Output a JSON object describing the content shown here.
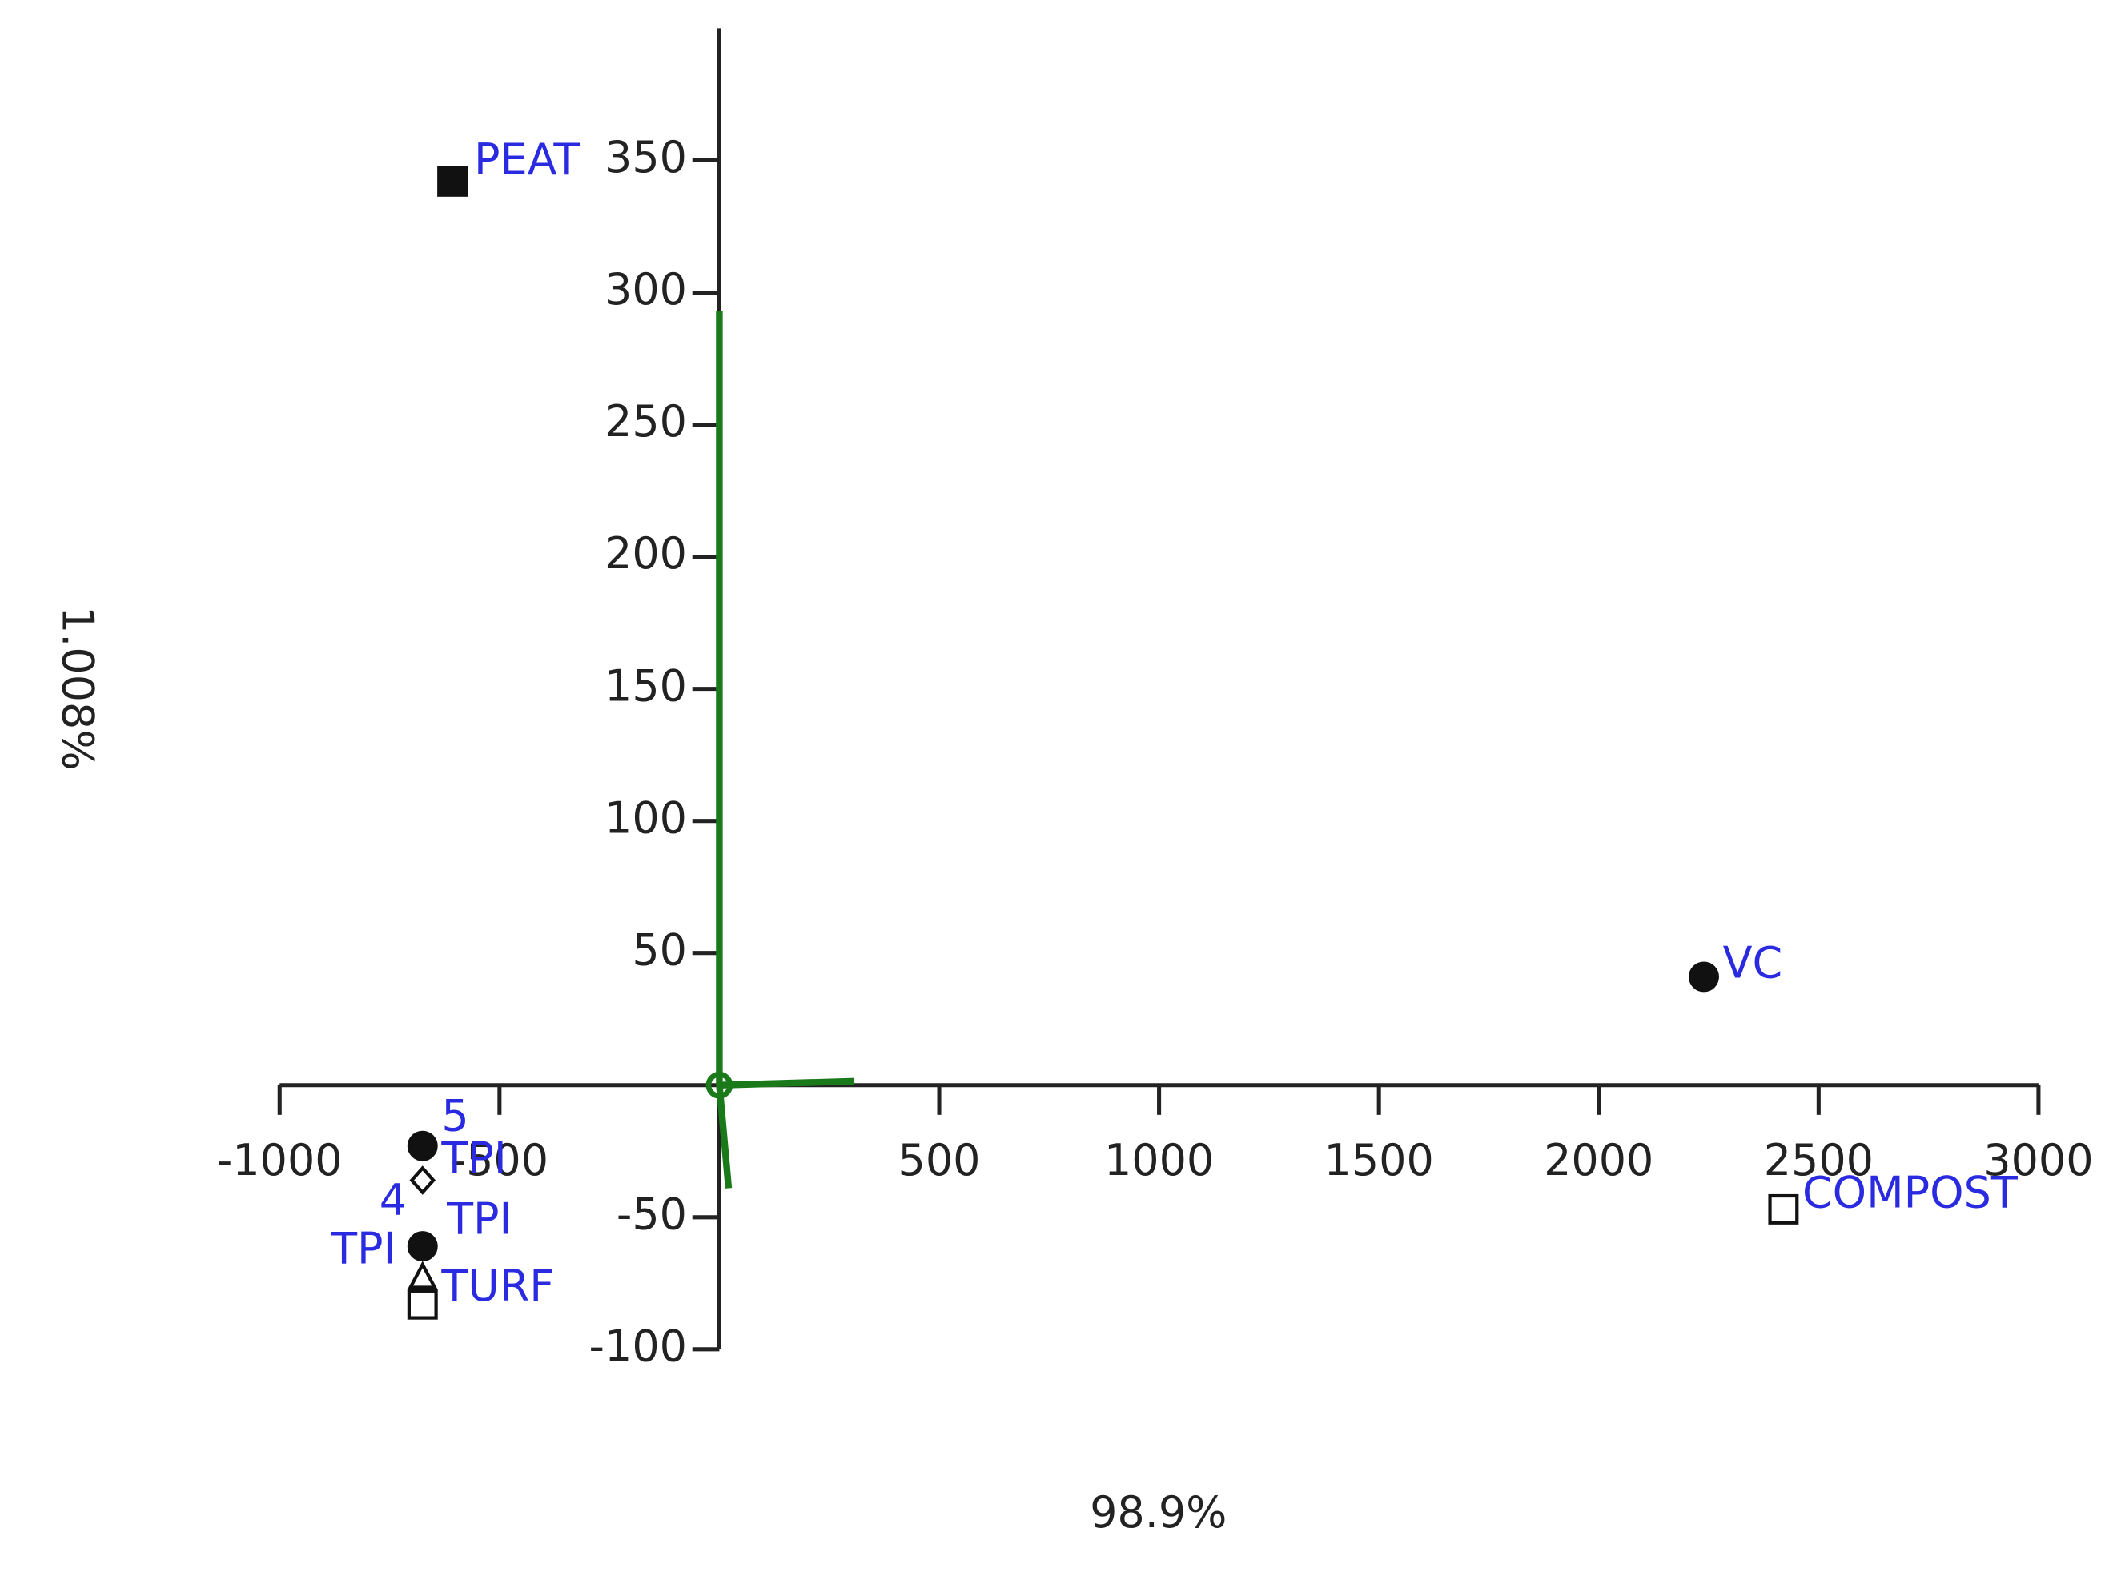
{
  "chart_data": {
    "type": "scatter",
    "x_label": "98.9%",
    "y_label": "1.008%",
    "xlim": [
      -1000,
      3000
    ],
    "ylim": [
      -100,
      400
    ],
    "xticks": [
      -1000,
      -500,
      500,
      1000,
      1500,
      2000,
      2500,
      3000
    ],
    "yticks": [
      -100,
      -50,
      50,
      100,
      150,
      200,
      250,
      300,
      350
    ],
    "points": [
      {
        "labels": [
          "PEAT"
        ],
        "marker": "square-filled",
        "x": -607,
        "y": 342
      },
      {
        "labels": [
          "VC"
        ],
        "marker": "circle-filled",
        "x": 2239,
        "y": 41
      },
      {
        "labels": [
          "COMPOST"
        ],
        "marker": "square-open",
        "x": 2420,
        "y": -47
      },
      {
        "labels": [
          "5"
        ],
        "marker": "circle-filled",
        "x": -675,
        "y": -23
      },
      {
        "labels": [
          "TPI"
        ],
        "marker": "diamond-open",
        "x": -675,
        "y": -36
      },
      {
        "labels": [
          "TPI",
          "4",
          "TPI"
        ],
        "marker": "circle-filled",
        "x": -675,
        "y": -61
      },
      {
        "labels": [
          "TURF"
        ],
        "marker": "triangle-open",
        "x": -675,
        "y": -73
      },
      {
        "labels": [],
        "marker": "square-open",
        "x": -675,
        "y": -83
      }
    ],
    "loadings_color": "#1a7a1a",
    "loadings": [
      {
        "x": 0,
        "y": 293
      },
      {
        "x": 307,
        "y": 1.5
      },
      {
        "x": 21,
        "y": -39
      }
    ]
  }
}
